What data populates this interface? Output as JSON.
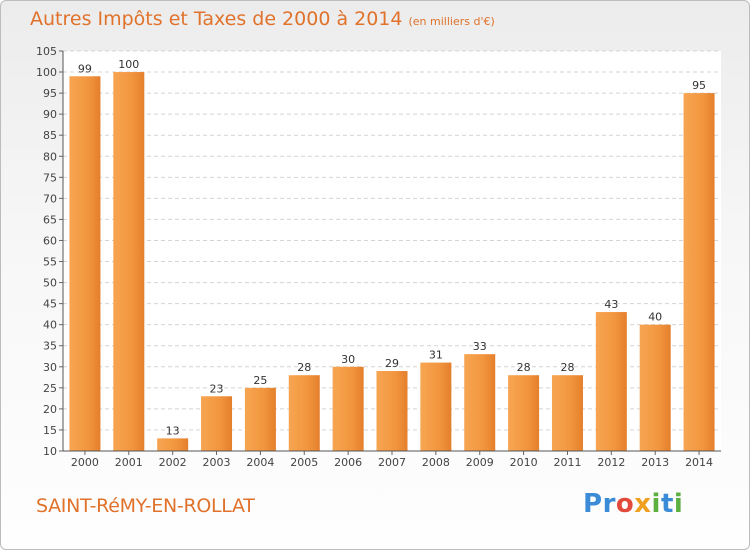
{
  "header": {
    "title": "Autres Impôts et Taxes de 2000 à 2014",
    "subtitle": "(en milliers d'€)"
  },
  "footer": {
    "commune": "SAINT-RéMY-EN-ROLLAT",
    "logo_letters": [
      "P",
      "r",
      "o",
      "x",
      "i",
      "t",
      "i"
    ]
  },
  "colors": {
    "title": "#e0722b",
    "bar": "#f2963f",
    "logo": [
      "#3b8bd6",
      "#3b8bd6",
      "#e24a3b",
      "#f0a020",
      "#5bb040",
      "#3b8bd6",
      "#5bb040"
    ]
  },
  "chart_data": {
    "type": "bar",
    "categories": [
      "2000",
      "2001",
      "2002",
      "2003",
      "2004",
      "2005",
      "2006",
      "2007",
      "2008",
      "2009",
      "2010",
      "2011",
      "2012",
      "2013",
      "2014"
    ],
    "values": [
      99,
      100,
      13,
      23,
      25,
      28,
      30,
      29,
      31,
      33,
      28,
      28,
      43,
      40,
      95
    ],
    "ylim": [
      10,
      105
    ],
    "ytick_step": 5,
    "grid": true
  }
}
